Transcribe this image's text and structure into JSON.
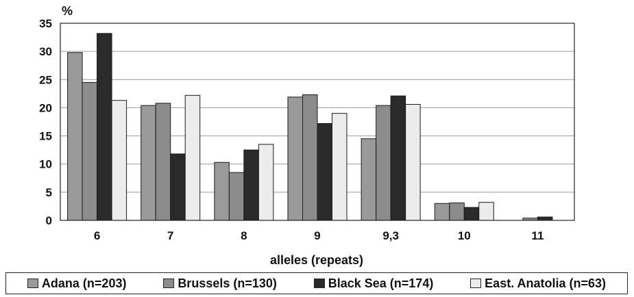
{
  "chart_data": {
    "type": "bar",
    "ylabel": "%",
    "xlabel": "alleles (repeats)",
    "ylim": [
      0,
      35
    ],
    "yticks": [
      0,
      5,
      10,
      15,
      20,
      25,
      30,
      35
    ],
    "grid": true,
    "legend_position": "bottom",
    "categories": [
      "6",
      "7",
      "8",
      "9",
      "9,3",
      "10",
      "11"
    ],
    "series": [
      {
        "name": "Adana (n=203)",
        "color": "#9a9a9a",
        "values": [
          29.8,
          20.4,
          10.3,
          21.9,
          14.5,
          3.0,
          0.0
        ]
      },
      {
        "name": "Brussels (n=130)",
        "color": "#8c8c8c",
        "values": [
          24.5,
          20.8,
          8.5,
          22.3,
          20.4,
          3.1,
          0.4
        ]
      },
      {
        "name": "Black Sea (n=174)",
        "color": "#2a2a2a",
        "values": [
          33.2,
          11.8,
          12.5,
          17.2,
          22.1,
          2.3,
          0.6
        ]
      },
      {
        "name": "East. Anatolia (n=63)",
        "color": "#ececec",
        "values": [
          21.3,
          22.2,
          13.5,
          19.0,
          20.6,
          3.2,
          0.0
        ]
      }
    ]
  }
}
